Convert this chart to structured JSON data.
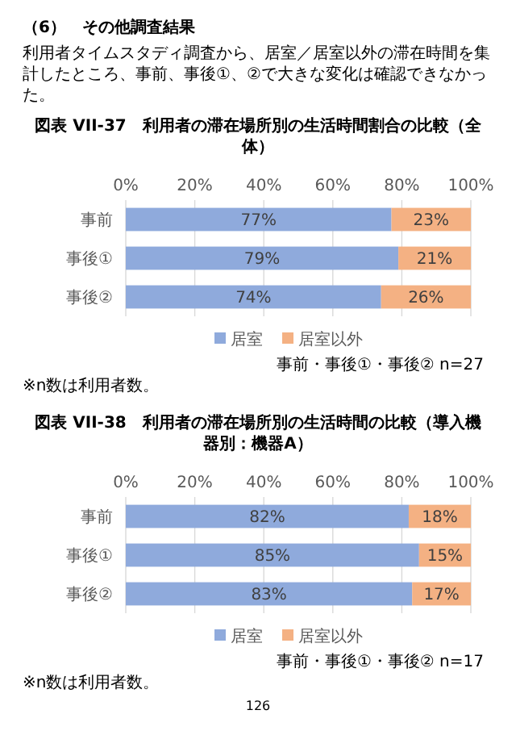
{
  "chart_data": [
    {
      "type": "bar",
      "orientation": "horizontal",
      "stacked": true,
      "title": "図表 VII-37　利用者の滞在場所別の生活時間割合の比較（全体）",
      "annotations": [
        "（6）　その他調査結果",
        "利用者タイムスタディ調査から、居室／居室以外の滞在時間を集計したところ、事前、事後①、②で大きな変化は確認できなかった。",
        "事前・事後①・事後② n=27",
        "※n数は利用者数。"
      ],
      "categories": [
        "事前",
        "事後①",
        "事後②"
      ],
      "series": [
        {
          "name": "居室",
          "color": "#8faadc",
          "values": [
            77,
            79,
            74
          ],
          "value_labels": [
            "77%",
            "79%",
            "74%"
          ]
        },
        {
          "name": "居室以外",
          "color": "#f4b183",
          "values": [
            23,
            21,
            26
          ],
          "value_labels": [
            "23%",
            "21%",
            "26%"
          ]
        }
      ],
      "xlim": [
        0,
        100
      ],
      "xticks": [
        {
          "value": 0,
          "label": "0%"
        },
        {
          "value": 20,
          "label": "20%"
        },
        {
          "value": 40,
          "label": "40%"
        },
        {
          "value": 60,
          "label": "60%"
        },
        {
          "value": 80,
          "label": "80%"
        },
        {
          "value": 100,
          "label": "100%"
        }
      ],
      "grid": "x",
      "legend": "bottom"
    },
    {
      "type": "bar",
      "orientation": "horizontal",
      "stacked": true,
      "title": "図表 VII-38　利用者の滞在場所別の生活時間の比較（導入機器別：機器A）",
      "annotations": [
        "事前・事後①・事後② n=17",
        "※n数は利用者数。",
        "126"
      ],
      "categories": [
        "事前",
        "事後①",
        "事後②"
      ],
      "series": [
        {
          "name": "居室",
          "color": "#8faadc",
          "values": [
            82,
            85,
            83
          ],
          "value_labels": [
            "82%",
            "85%",
            "83%"
          ]
        },
        {
          "name": "居室以外",
          "color": "#f4b183",
          "values": [
            18,
            15,
            17
          ],
          "value_labels": [
            "18%",
            "15%",
            "17%"
          ]
        }
      ],
      "xlim": [
        0,
        100
      ],
      "xticks": [
        {
          "value": 0,
          "label": "0%"
        },
        {
          "value": 20,
          "label": "20%"
        },
        {
          "value": 40,
          "label": "40%"
        },
        {
          "value": 60,
          "label": "60%"
        },
        {
          "value": 80,
          "label": "80%"
        },
        {
          "value": 100,
          "label": "100%"
        }
      ],
      "grid": "x",
      "legend": "bottom"
    }
  ]
}
